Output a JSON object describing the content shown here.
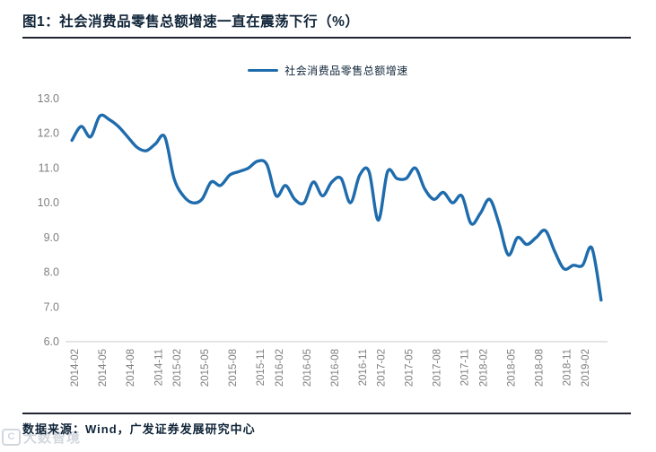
{
  "figure": {
    "title": "图1：社会消费品零售总额增速一直在震荡下行（%）",
    "source": "数据来源：Wind，广发证券发展研究中心",
    "watermark_logo": "C",
    "watermark_text": "大数智境"
  },
  "colors": {
    "line": "#1F6CAD",
    "heading_text": "#0F2438",
    "axis_text": "#7F7F7F",
    "axis_line": "#C9C9C9",
    "rule": "#1F2430"
  },
  "chart_data": {
    "type": "line",
    "title": "图1：社会消费品零售总额增速一直在震荡下行（%）",
    "xlabel": "",
    "ylabel": "",
    "ylim": [
      6.0,
      13.0
    ],
    "y_ticks": [
      13.0,
      12.0,
      11.0,
      10.0,
      9.0,
      8.0,
      7.0,
      6.0
    ],
    "grid": false,
    "legend_position": "top",
    "x_tick_months": [
      "02",
      "05",
      "08",
      "11"
    ],
    "x": [
      "2014-02",
      "2014-03",
      "2014-04",
      "2014-05",
      "2014-06",
      "2014-07",
      "2014-08",
      "2014-09",
      "2014-10",
      "2014-11",
      "2014-12",
      "2015-02",
      "2015-03",
      "2015-04",
      "2015-05",
      "2015-06",
      "2015-07",
      "2015-08",
      "2015-09",
      "2015-10",
      "2015-11",
      "2015-12",
      "2016-02",
      "2016-03",
      "2016-04",
      "2016-05",
      "2016-06",
      "2016-07",
      "2016-08",
      "2016-09",
      "2016-10",
      "2016-11",
      "2016-12",
      "2017-02",
      "2017-03",
      "2017-04",
      "2017-05",
      "2017-06",
      "2017-07",
      "2017-08",
      "2017-09",
      "2017-10",
      "2017-11",
      "2017-12",
      "2018-02",
      "2018-03",
      "2018-04",
      "2018-05",
      "2018-06",
      "2018-07",
      "2018-08",
      "2018-09",
      "2018-10",
      "2018-11",
      "2018-12",
      "2019-02",
      "2019-03",
      "2019-04"
    ],
    "series": [
      {
        "name": "社会消费品零售总额增速",
        "values": [
          11.8,
          12.2,
          11.9,
          12.5,
          12.4,
          12.2,
          11.9,
          11.6,
          11.5,
          11.7,
          11.9,
          10.7,
          10.2,
          10.0,
          10.1,
          10.6,
          10.5,
          10.8,
          10.9,
          11.0,
          11.2,
          11.1,
          10.2,
          10.5,
          10.1,
          10.0,
          10.6,
          10.2,
          10.6,
          10.7,
          10.0,
          10.8,
          10.9,
          9.5,
          10.9,
          10.7,
          10.7,
          11.0,
          10.4,
          10.1,
          10.3,
          10.0,
          10.2,
          9.4,
          9.7,
          10.1,
          9.4,
          8.5,
          9.0,
          8.8,
          9.0,
          9.2,
          8.6,
          8.1,
          8.2,
          8.2,
          8.7,
          7.2
        ]
      }
    ]
  }
}
